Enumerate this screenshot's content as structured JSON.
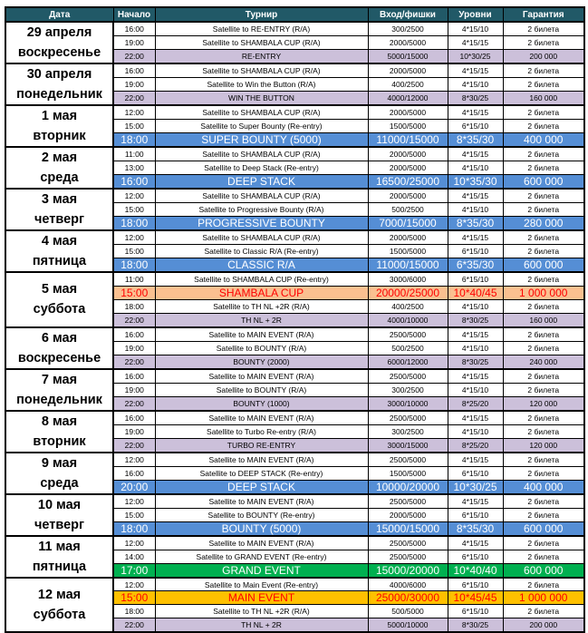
{
  "headers": [
    "Дата",
    "Начало",
    "Турнир",
    "Вход/фишки",
    "Уровни",
    "Гарантия"
  ],
  "colors": {
    "header": "#215967",
    "purple": "#ccc0da",
    "blue": "#558ed5",
    "orange": "#fac090",
    "green": "#00b050",
    "gold": "#ffc000",
    "red_text": "#ff0000"
  },
  "groups": [
    {
      "date": "29 апреля",
      "weekday": "воскресенье",
      "rows": [
        {
          "time": "16:00",
          "name": "Satellite to RE-ENTRY (R/A)",
          "buyin": "300/2500",
          "levels": "4*15/10",
          "guarantee": "2 билета",
          "style": "plain"
        },
        {
          "time": "19:00",
          "name": "Satellite to SHAMBALA CUP (R/A)",
          "buyin": "2000/5000",
          "levels": "4*15/15",
          "guarantee": "2 билета",
          "style": "plain"
        },
        {
          "time": "22:00",
          "name": "RE-ENTRY",
          "buyin": "5000/15000",
          "levels": "10*30/25",
          "guarantee": "200 000",
          "style": "purple"
        }
      ]
    },
    {
      "date": "30 апреля",
      "weekday": "понедельник",
      "rows": [
        {
          "time": "16:00",
          "name": "Satellite to SHAMBALA CUP (R/A)",
          "buyin": "2000/5000",
          "levels": "4*15/15",
          "guarantee": "2 билета",
          "style": "plain"
        },
        {
          "time": "19:00",
          "name": "Satellite to Win the Button (R/A)",
          "buyin": "400/2500",
          "levels": "4*15/10",
          "guarantee": "2 билета",
          "style": "plain"
        },
        {
          "time": "22:00",
          "name": "WIN THE BUTTON",
          "buyin": "4000/12000",
          "levels": "8*30/25",
          "guarantee": "160 000",
          "style": "purple"
        }
      ]
    },
    {
      "date": "1 мая",
      "weekday": "вторник",
      "rows": [
        {
          "time": "12:00",
          "name": "Satellite to SHAMBALA CUP (R/A)",
          "buyin": "2000/5000",
          "levels": "4*15/15",
          "guarantee": "2 билета",
          "style": "plain"
        },
        {
          "time": "15:00",
          "name": "Satellite to Super Bounty (Re-entry)",
          "buyin": "1500/5000",
          "levels": "6*15/10",
          "guarantee": "2 билета",
          "style": "plain"
        },
        {
          "time": "18:00",
          "name": "SUPER BOUNTY (5000)",
          "buyin": "11000/15000",
          "levels": "8*35/30",
          "guarantee": "400 000",
          "style": "blue"
        }
      ]
    },
    {
      "date": "2 мая",
      "weekday": "среда",
      "rows": [
        {
          "time": "11:00",
          "name": "Satellite to SHAMBALA CUP (R/A)",
          "buyin": "2000/5000",
          "levels": "4*15/15",
          "guarantee": "2 билета",
          "style": "plain"
        },
        {
          "time": "13:00",
          "name": "Satellite to Deep Stack (Re-entry)",
          "buyin": "2000/5000",
          "levels": "4*15/10",
          "guarantee": "2 билета",
          "style": "plain"
        },
        {
          "time": "16:00",
          "name": "DEEP STACK",
          "buyin": "16500/25000",
          "levels": "10*35/30",
          "guarantee": "600 000",
          "style": "blue"
        }
      ]
    },
    {
      "date": "3 мая",
      "weekday": "четверг",
      "rows": [
        {
          "time": "12:00",
          "name": "Satellite to SHAMBALA CUP (R/A)",
          "buyin": "2000/5000",
          "levels": "4*15/15",
          "guarantee": "2 билета",
          "style": "plain"
        },
        {
          "time": "15:00",
          "name": "Satellite to Progressive Bounty (R/A)",
          "buyin": "500/2500",
          "levels": "4*15/10",
          "guarantee": "2 билета",
          "style": "plain"
        },
        {
          "time": "18:00",
          "name": "PROGRESSIVE BOUNTY",
          "buyin": "7000/15000",
          "levels": "8*35/30",
          "guarantee": "280 000",
          "style": "blue"
        }
      ]
    },
    {
      "date": "4 мая",
      "weekday": "пятница",
      "rows": [
        {
          "time": "12:00",
          "name": "Satellite to SHAMBALA CUP (R/A)",
          "buyin": "2000/5000",
          "levels": "4*15/15",
          "guarantee": "2 билета",
          "style": "plain"
        },
        {
          "time": "15:00",
          "name": "Satellite to Classic R/A (Re-entry)",
          "buyin": "1500/5000",
          "levels": "6*15/10",
          "guarantee": "2 билета",
          "style": "plain"
        },
        {
          "time": "18:00",
          "name": "CLASSIC R/A",
          "buyin": "11000/15000",
          "levels": "6*35/30",
          "guarantee": "600 000",
          "style": "blue"
        }
      ]
    },
    {
      "date": "5 мая",
      "weekday": "суббота",
      "rows": [
        {
          "time": "11:00",
          "name": "Satellite to SHAMBALA CUP (Re-entry)",
          "buyin": "3000/6000",
          "levels": "6*15/10",
          "guarantee": "2 билета",
          "style": "plain"
        },
        {
          "time": "15:00",
          "name": "SHAMBALA CUP",
          "buyin": "20000/25000",
          "levels": "10*40/45",
          "guarantee": "1 000 000",
          "style": "orange"
        },
        {
          "time": "18:00",
          "name": "Satellite to TH NL +2R (R/A)",
          "buyin": "400/2500",
          "levels": "4*15/10",
          "guarantee": "2 билета",
          "style": "plain"
        },
        {
          "time": "22:00",
          "name": "TH NL + 2R",
          "buyin": "4000/10000",
          "levels": "8*30/25",
          "guarantee": "160 000",
          "style": "purple"
        }
      ]
    },
    {
      "date": "6 мая",
      "weekday": "воскресенье",
      "rows": [
        {
          "time": "16:00",
          "name": "Satellite to MAIN EVENT (R/A)",
          "buyin": "2500/5000",
          "levels": "4*15/15",
          "guarantee": "2 билета",
          "style": "plain"
        },
        {
          "time": "19:00",
          "name": "Satellite to BOUNTY (R/A)",
          "buyin": "500/2500",
          "levels": "4*15/10",
          "guarantee": "2 билета",
          "style": "plain"
        },
        {
          "time": "22:00",
          "name": "BOUNTY (2000)",
          "buyin": "6000/12000",
          "levels": "8*30/25",
          "guarantee": "240 000",
          "style": "purple"
        }
      ]
    },
    {
      "date": "7 мая",
      "weekday": "понедельник",
      "rows": [
        {
          "time": "16:00",
          "name": "Satellite to MAIN EVENT (R/A)",
          "buyin": "2500/5000",
          "levels": "4*15/15",
          "guarantee": "2 билета",
          "style": "plain"
        },
        {
          "time": "19:00",
          "name": "Satellite to BOUNTY (R/A)",
          "buyin": "300/2500",
          "levels": "4*15/10",
          "guarantee": "2 билета",
          "style": "plain"
        },
        {
          "time": "22:00",
          "name": "BOUNTY (1000)",
          "buyin": "3000/10000",
          "levels": "8*25/20",
          "guarantee": "120 000",
          "style": "purple"
        }
      ]
    },
    {
      "date": "8 мая",
      "weekday": "вторник",
      "rows": [
        {
          "time": "16:00",
          "name": "Satellite to MAIN EVENT (R/A)",
          "buyin": "2500/5000",
          "levels": "4*15/15",
          "guarantee": "2 билета",
          "style": "plain"
        },
        {
          "time": "19:00",
          "name": "Satellite to Turbo Re-entry (R/A)",
          "buyin": "300/2500",
          "levels": "4*15/10",
          "guarantee": "2 билета",
          "style": "plain"
        },
        {
          "time": "22:00",
          "name": "TURBO RE-ENTRY",
          "buyin": "3000/15000",
          "levels": "8*25/20",
          "guarantee": "120 000",
          "style": "purple"
        }
      ]
    },
    {
      "date": "9 мая",
      "weekday": "среда",
      "rows": [
        {
          "time": "12:00",
          "name": "Satellite to MAIN EVENT (R/A)",
          "buyin": "2500/5000",
          "levels": "4*15/15",
          "guarantee": "2 билета",
          "style": "plain"
        },
        {
          "time": "16:00",
          "name": "Satellite to DEEP STACK (Re-entry)",
          "buyin": "1500/5000",
          "levels": "6*15/10",
          "guarantee": "2 билета",
          "style": "plain"
        },
        {
          "time": "20:00",
          "name": "DEEP STACK",
          "buyin": "10000/20000",
          "levels": "10*30/25",
          "guarantee": "400 000",
          "style": "blue"
        }
      ]
    },
    {
      "date": "10 мая",
      "weekday": "четверг",
      "rows": [
        {
          "time": "12:00",
          "name": "Satellite to MAIN EVENT (R/A)",
          "buyin": "2500/5000",
          "levels": "4*15/15",
          "guarantee": "2 билета",
          "style": "plain"
        },
        {
          "time": "15:00",
          "name": "Satellite to BOUNTY (Re-entry)",
          "buyin": "2000/5000",
          "levels": "6*15/10",
          "guarantee": "2 билета",
          "style": "plain"
        },
        {
          "time": "18:00",
          "name": "BOUNTY (5000)",
          "buyin": "15000/15000",
          "levels": "8*35/30",
          "guarantee": "600 000",
          "style": "blue"
        }
      ]
    },
    {
      "date": "11 мая",
      "weekday": "пятница",
      "rows": [
        {
          "time": "12:00",
          "name": "Satellite to MAIN EVENT (R/A)",
          "buyin": "2500/5000",
          "levels": "4*15/15",
          "guarantee": "2 билета",
          "style": "plain"
        },
        {
          "time": "14:00",
          "name": "Satellite to GRAND EVENT (Re-entry)",
          "buyin": "2500/5000",
          "levels": "6*15/10",
          "guarantee": "2 билета",
          "style": "plain"
        },
        {
          "time": "17:00",
          "name": "GRAND EVENT",
          "buyin": "15000/20000",
          "levels": "10*40/40",
          "guarantee": "600 000",
          "style": "green"
        }
      ]
    },
    {
      "date": "12 мая",
      "weekday": "суббота",
      "rows": [
        {
          "time": "12:00",
          "name": "Satellite to Main Event (Re-entry)",
          "buyin": "4000/6000",
          "levels": "6*15/10",
          "guarantee": "2 билета",
          "style": "plain"
        },
        {
          "time": "15:00",
          "name": "MAIN EVENT",
          "buyin": "25000/30000",
          "levels": "10*45/45",
          "guarantee": "1 000 000",
          "style": "gold"
        },
        {
          "time": "18:00",
          "name": "Satellite to TH NL +2R (R/A)",
          "buyin": "500/5000",
          "levels": "6*15/10",
          "guarantee": "2 билета",
          "style": "plain"
        },
        {
          "time": "22:00",
          "name": "TH NL + 2R",
          "buyin": "5000/10000",
          "levels": "8*30/25",
          "guarantee": "200 000",
          "style": "purple"
        }
      ]
    }
  ]
}
